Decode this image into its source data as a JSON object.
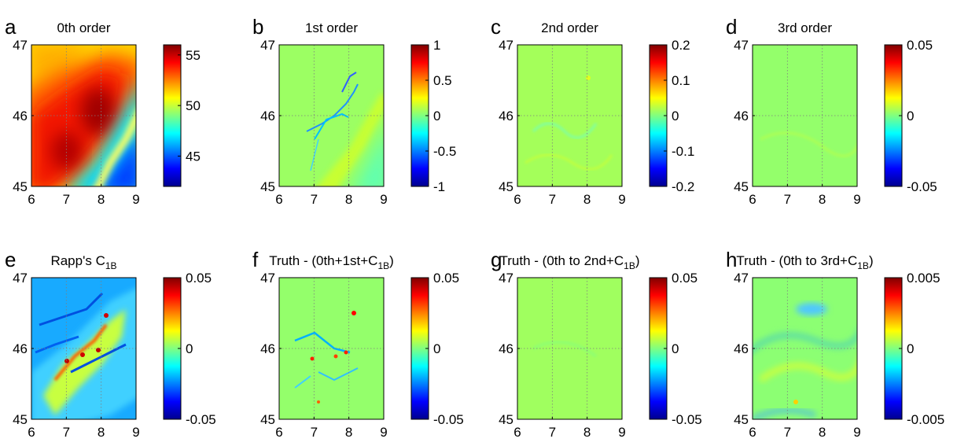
{
  "chart_data": [
    {
      "letter": "a",
      "title": "0th order",
      "type": "heatmap",
      "x_ticks": [
        "6",
        "7",
        "8",
        "9"
      ],
      "y_ticks": [
        "45",
        "46",
        "47"
      ],
      "xlim": [
        6,
        9
      ],
      "ylim": [
        45,
        47
      ],
      "colorbar_ticks": [
        "45",
        "50",
        "55"
      ],
      "clim": [
        42,
        56
      ]
    },
    {
      "letter": "b",
      "title": "1st order",
      "type": "heatmap",
      "x_ticks": [
        "6",
        "7",
        "8",
        "9"
      ],
      "y_ticks": [
        "45",
        "46",
        "47"
      ],
      "xlim": [
        6,
        9
      ],
      "ylim": [
        45,
        47
      ],
      "colorbar_ticks": [
        "1",
        "0.5",
        "0",
        "-0.5",
        "-1"
      ],
      "clim": [
        -1,
        1
      ]
    },
    {
      "letter": "c",
      "title": "2nd order",
      "type": "heatmap",
      "x_ticks": [
        "6",
        "7",
        "8",
        "9"
      ],
      "y_ticks": [
        "45",
        "46",
        "47"
      ],
      "xlim": [
        6,
        9
      ],
      "ylim": [
        45,
        47
      ],
      "colorbar_ticks": [
        "0.2",
        "0.1",
        "0",
        "-0.1",
        "-0.2"
      ],
      "clim": [
        -0.2,
        0.2
      ]
    },
    {
      "letter": "d",
      "title": "3rd order",
      "type": "heatmap",
      "x_ticks": [
        "6",
        "7",
        "8",
        "9"
      ],
      "y_ticks": [
        "45",
        "46",
        "47"
      ],
      "xlim": [
        6,
        9
      ],
      "ylim": [
        45,
        47
      ],
      "colorbar_ticks": [
        "0.05",
        "0",
        "-0.05"
      ],
      "clim": [
        -0.05,
        0.05
      ]
    },
    {
      "letter": "e",
      "title": "Rapp's C",
      "title_sub": "1B",
      "title_after": "",
      "type": "heatmap",
      "x_ticks": [
        "6",
        "7",
        "8",
        "9"
      ],
      "y_ticks": [
        "45",
        "46",
        "47"
      ],
      "xlim": [
        6,
        9
      ],
      "ylim": [
        45,
        47
      ],
      "colorbar_ticks": [
        "0.05",
        "0",
        "-0.05"
      ],
      "clim": [
        -0.05,
        0.05
      ]
    },
    {
      "letter": "f",
      "title": "Truth - (0th+1st+C",
      "title_sub": "1B",
      "title_after": ")",
      "type": "heatmap",
      "x_ticks": [
        "6",
        "7",
        "8",
        "9"
      ],
      "y_ticks": [
        "45",
        "46",
        "47"
      ],
      "xlim": [
        6,
        9
      ],
      "ylim": [
        45,
        47
      ],
      "colorbar_ticks": [
        "0.05",
        "0",
        "-0.05"
      ],
      "clim": [
        -0.05,
        0.05
      ]
    },
    {
      "letter": "g",
      "title": "Truth - (0th to 2nd+C",
      "title_sub": "1B",
      "title_after": ")",
      "type": "heatmap",
      "x_ticks": [
        "6",
        "7",
        "8",
        "9"
      ],
      "y_ticks": [
        "45",
        "46",
        "47"
      ],
      "xlim": [
        6,
        9
      ],
      "ylim": [
        45,
        47
      ],
      "colorbar_ticks": [
        "0.05",
        "0",
        "-0.05"
      ],
      "clim": [
        -0.05,
        0.05
      ]
    },
    {
      "letter": "h",
      "title": "Truth - (0th to 3rd+C",
      "title_sub": "1B",
      "title_after": ")",
      "type": "heatmap",
      "x_ticks": [
        "6",
        "7",
        "8",
        "9"
      ],
      "y_ticks": [
        "45",
        "46",
        "47"
      ],
      "xlim": [
        6,
        9
      ],
      "ylim": [
        45,
        47
      ],
      "colorbar_ticks": [
        "0.005",
        "0",
        "-0.005"
      ],
      "clim": [
        -0.005,
        0.005
      ]
    }
  ],
  "colors": {
    "jet": [
      "#00008f",
      "#0000ff",
      "#0080ff",
      "#00ffff",
      "#80ff80",
      "#ffff00",
      "#ff8000",
      "#ff0000",
      "#800000"
    ],
    "grid": "#7f7f7f",
    "axis": "#000000"
  }
}
